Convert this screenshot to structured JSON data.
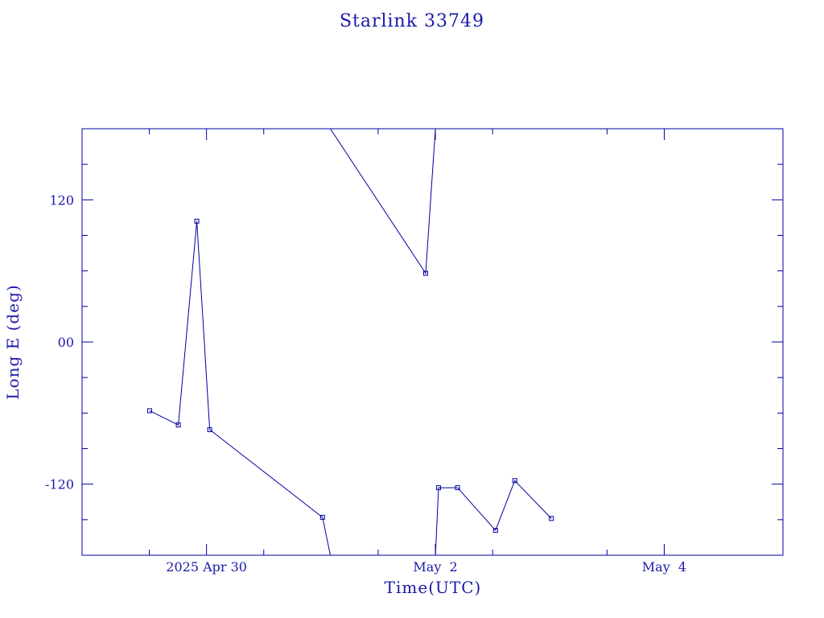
{
  "chart_data": {
    "type": "line",
    "title": "Starlink 33749",
    "xlabel": "Time(UTC)",
    "ylabel": "Long E (deg)",
    "xlim": [
      "2025-04-28T21:54",
      "2025-05-05T00:54"
    ],
    "ylim": [
      -180,
      180
    ],
    "x_tick_labels": [
      {
        "label": "2025 Apr 30",
        "x": "2025-04-30T00:00"
      },
      {
        "label": "May  2",
        "x": "2025-05-02T00:00"
      },
      {
        "label": "May  4",
        "x": "2025-05-04T00:00"
      }
    ],
    "y_tick_labels": [
      {
        "label": "120",
        "y": 120
      },
      {
        "label": "00",
        "y": 0
      },
      {
        "label": "-120",
        "y": -120
      }
    ],
    "y_minor_ticks": [
      -150,
      -90,
      -60,
      -30,
      30,
      60,
      90,
      150
    ],
    "x_minor_ticks_hours": [
      -12,
      12,
      36,
      60,
      84
    ],
    "segments": [
      [
        {
          "x": "2025-04-29T12:04",
          "y": -58
        },
        {
          "x": "2025-04-29T18:05",
          "y": -70
        },
        {
          "x": "2025-04-29T21:58",
          "y": 102
        },
        {
          "x": "2025-04-30T00:40",
          "y": -74
        },
        {
          "x": "2025-05-01T00:20",
          "y": -148
        },
        {
          "x": "2025-05-01T01:58",
          "y": -180
        }
      ],
      [
        {
          "x": "2025-05-01T01:58",
          "y": 180
        },
        {
          "x": "2025-05-01T21:58",
          "y": 58
        },
        {
          "x": "2025-05-02T00:00",
          "y": 180
        }
      ],
      [
        {
          "x": "2025-05-02T00:00",
          "y": -180
        },
        {
          "x": "2025-05-02T00:40",
          "y": -123
        },
        {
          "x": "2025-05-02T04:39",
          "y": -123
        },
        {
          "x": "2025-05-02T12:37",
          "y": -159
        },
        {
          "x": "2025-05-02T16:39",
          "y": -117
        },
        {
          "x": "2025-05-03T00:20",
          "y": -149
        }
      ]
    ],
    "markers": [
      {
        "x": "2025-04-29T12:04",
        "y": -58
      },
      {
        "x": "2025-04-29T18:05",
        "y": -70
      },
      {
        "x": "2025-04-29T21:58",
        "y": 102
      },
      {
        "x": "2025-04-30T00:40",
        "y": -74
      },
      {
        "x": "2025-05-01T00:20",
        "y": -148
      },
      {
        "x": "2025-05-01T21:58",
        "y": 58
      },
      {
        "x": "2025-05-02T00:40",
        "y": -123
      },
      {
        "x": "2025-05-02T04:39",
        "y": -123
      },
      {
        "x": "2025-05-02T12:37",
        "y": -159
      },
      {
        "x": "2025-05-02T16:39",
        "y": -117
      },
      {
        "x": "2025-05-03T00:20",
        "y": -149
      }
    ],
    "grid": false,
    "colors": {
      "line": "#0000a0",
      "axes": "#0000a0",
      "text": "#1a1aa8"
    }
  }
}
